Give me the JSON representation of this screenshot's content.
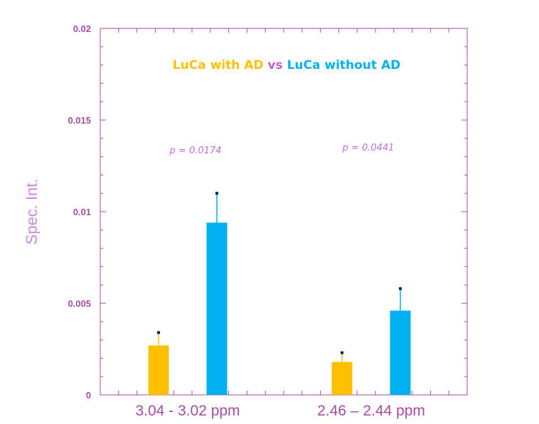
{
  "chart_data": {
    "type": "bar",
    "categories": [
      "3.04 - 3.02 ppm",
      "2.46 – 2.44 ppm"
    ],
    "series": [
      {
        "name": "LuCa with AD",
        "values": [
          0.0027,
          0.0018
        ],
        "errors": [
          0.0007,
          0.0005
        ],
        "color": "#ffc000"
      },
      {
        "name": "LuCa without AD",
        "values": [
          0.0094,
          0.0046
        ],
        "errors": [
          0.0016,
          0.0012
        ],
        "color": "#00b0f0"
      }
    ],
    "legend": {
      "parts": [
        "LuCa with AD",
        " vs ",
        "LuCa without AD"
      ],
      "placement": "top-center"
    },
    "annotations": [
      "p = 0.0174",
      "p = 0.0441"
    ],
    "ylabel": "Spec. Int.",
    "xlabel": "",
    "title": "",
    "ylim": [
      0,
      0.02
    ],
    "yticks": [
      "0",
      "0.005",
      "0.01",
      "0.015",
      "0.02"
    ],
    "grid": false,
    "colors": {
      "axis": "#a64ca6",
      "text": "#a64ca6",
      "ylabel": "#cc88e0",
      "vs": "#c060d0",
      "error_cap": "#002080"
    }
  }
}
